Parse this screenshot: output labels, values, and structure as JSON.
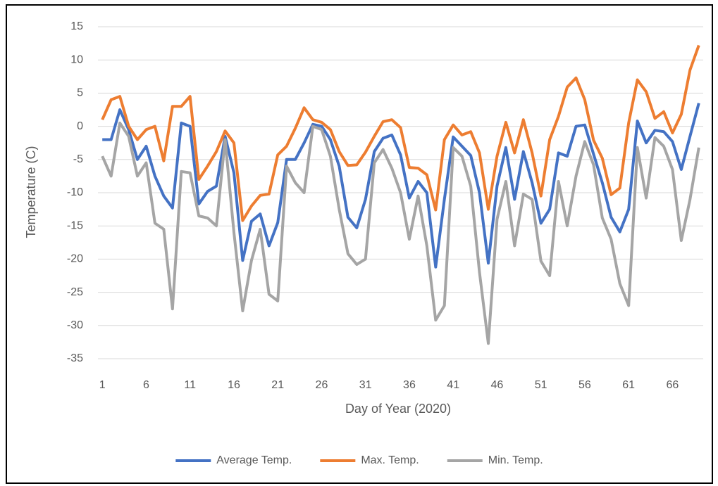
{
  "chart_data": {
    "type": "line",
    "x_label": "Day of Year (2020)",
    "y_label": "Temperature (C)",
    "categories": [
      "1",
      null,
      null,
      null,
      null,
      "6",
      null,
      null,
      null,
      null,
      "11",
      null,
      null,
      null,
      null,
      "16",
      null,
      null,
      null,
      null,
      "21",
      null,
      null,
      null,
      null,
      "26",
      null,
      null,
      null,
      null,
      "31",
      null,
      null,
      null,
      null,
      "36",
      null,
      null,
      null,
      null,
      "41",
      null,
      null,
      null,
      null,
      "46",
      null,
      null,
      null,
      null,
      "51",
      null,
      null,
      null,
      null,
      "56",
      null,
      null,
      null,
      null,
      "61",
      null,
      null,
      null,
      null,
      "66",
      null,
      null,
      null
    ],
    "series": [
      {
        "name": "Average Temp.",
        "color": "#4472c4",
        "values": [
          -2,
          -2,
          2.5,
          -0.5,
          -5,
          -3,
          -7.5,
          -10.5,
          -12.3,
          0.5,
          0,
          -11.7,
          -9.8,
          -9,
          -1.5,
          -7,
          -20.2,
          -14.3,
          -13.2,
          -18,
          -14.5,
          -5,
          -5,
          -2.5,
          0.3,
          0,
          -2,
          -6,
          -13.7,
          -15.3,
          -11,
          -3.8,
          -1.8,
          -1.3,
          -4.3,
          -10.8,
          -8.3,
          -10,
          -21.2,
          -11,
          -1.6,
          -3,
          -4.4,
          -10,
          -20.6,
          -9,
          -3.2,
          -11,
          -3.8,
          -8.5,
          -14.6,
          -12.5,
          -4,
          -4.5,
          0,
          0.2,
          -4.2,
          -8.5,
          -13.7,
          -15.9,
          -12.5,
          0.8,
          -2.5,
          -0.6,
          -0.8,
          -2.3,
          -6.5,
          -1.5,
          3.5
        ]
      },
      {
        "name": "Max. Temp.",
        "color": "#ed7d31",
        "values": [
          1,
          4,
          4.5,
          0,
          -2,
          -0.5,
          0,
          -5.2,
          3,
          3,
          4.5,
          -8,
          -6,
          -3.8,
          -0.7,
          -2.5,
          -14.2,
          -12,
          -10.4,
          -10.2,
          -4.3,
          -3,
          -0.3,
          2.8,
          1,
          0.6,
          -0.5,
          -3.8,
          -5.9,
          -5.8,
          -3.9,
          -1.5,
          0.7,
          1,
          -0.2,
          -6.2,
          -6.3,
          -7.3,
          -12.6,
          -2,
          0.2,
          -1.3,
          -0.8,
          -4,
          -12.5,
          -4.5,
          0.6,
          -4,
          1,
          -4,
          -10.5,
          -2,
          1.5,
          5.9,
          7.3,
          4,
          -2.1,
          -4.8,
          -10.3,
          -9.3,
          0.5,
          7,
          5.2,
          1.2,
          2.2,
          -1,
          1.8,
          8.5,
          12.2
        ]
      },
      {
        "name": "Min. Temp.",
        "color": "#a5a5a5",
        "values": [
          -4.5,
          -7.5,
          0.5,
          -1.5,
          -7.5,
          -5.5,
          -14.6,
          -15.5,
          -27.5,
          -6.8,
          -7,
          -13.5,
          -13.8,
          -15,
          -2,
          -16,
          -27.8,
          -20.2,
          -15.5,
          -25.3,
          -26.3,
          -6,
          -8.5,
          -10,
          0,
          -0.5,
          -4.5,
          -12.5,
          -19.2,
          -20.8,
          -20,
          -5.5,
          -3.5,
          -6.3,
          -10,
          -17,
          -10.5,
          -18,
          -29.2,
          -27,
          -3.2,
          -4.5,
          -9,
          -22,
          -32.7,
          -14,
          -8.3,
          -18,
          -10.2,
          -11,
          -20.3,
          -22.5,
          -8.3,
          -15,
          -7.5,
          -2.3,
          -5.8,
          -13.8,
          -17,
          -23.7,
          -27,
          -3.2,
          -10.8,
          -1.7,
          -3,
          -6.5,
          -17.2,
          -11,
          -3.2
        ]
      }
    ],
    "ylim": [
      -35,
      15
    ],
    "yticks": [
      -35,
      -30,
      -25,
      -20,
      -15,
      -10,
      -5,
      0,
      5,
      10,
      15
    ],
    "grid": true,
    "legend": "bottom"
  }
}
